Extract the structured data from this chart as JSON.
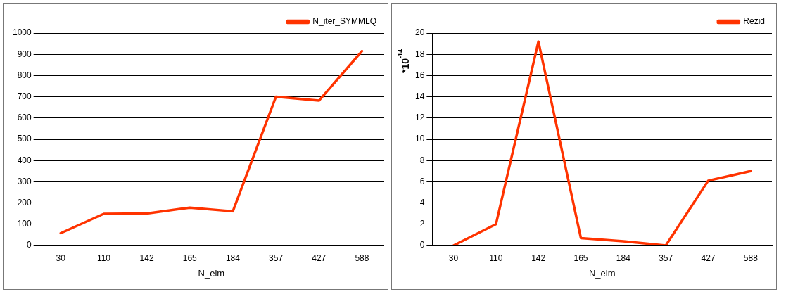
{
  "chart_data": [
    {
      "type": "line",
      "xlabel": "N_elm",
      "categories": [
        "30",
        "110",
        "142",
        "165",
        "184",
        "357",
        "427",
        "588"
      ],
      "series": [
        {
          "name": "N_iter_SYMMLQ",
          "color": "#ff3300",
          "values": [
            58,
            149,
            151,
            178,
            161,
            700,
            682,
            915
          ]
        }
      ],
      "ylim": [
        0,
        1000
      ],
      "yticks": [
        0,
        100,
        200,
        300,
        400,
        500,
        600,
        700,
        800,
        900,
        1000
      ],
      "grid": "y",
      "legend": "top right",
      "marker": "none",
      "line_style": "solid"
    },
    {
      "type": "line",
      "xlabel": "N_elm",
      "ylabel": "*10$^{-14}$",
      "categories": [
        "30",
        "110",
        "142",
        "165",
        "184",
        "357",
        "427",
        "588"
      ],
      "series": [
        {
          "name": "Rezid",
          "color": "#ff3300",
          "values": [
            0,
            2,
            19.2,
            0.7,
            0.4,
            0,
            6.1,
            7.0
          ]
        }
      ],
      "ylim": [
        0,
        20
      ],
      "yticks": [
        0,
        2,
        4,
        6,
        8,
        10,
        12,
        14,
        16,
        18,
        20
      ],
      "grid": "y",
      "legend": "top right",
      "marker": "none",
      "line_style": "solid"
    }
  ]
}
